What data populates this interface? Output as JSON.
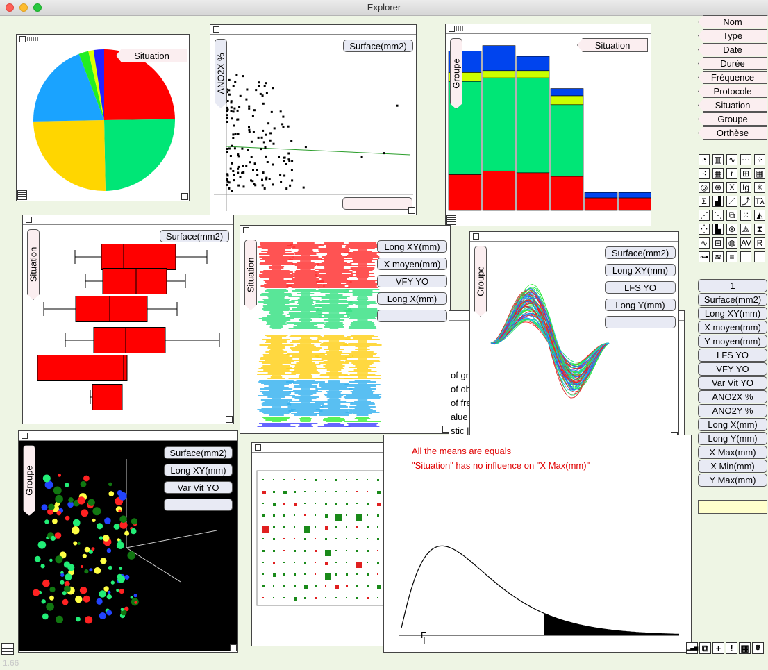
{
  "window": {
    "title": "Explorer"
  },
  "version": "1.66",
  "pie": {
    "tag": "Situation",
    "slices": [
      {
        "value": 24.8,
        "color": "#ff0000"
      },
      {
        "value": 24.9,
        "color": "#00e676"
      },
      {
        "value": 25.0,
        "color": "#ffd600"
      },
      {
        "value": 19.5,
        "color": "#1aa3ff"
      },
      {
        "value": 2.2,
        "color": "#22ee22"
      },
      {
        "value": 1.2,
        "color": "#ddff00"
      },
      {
        "value": 2.4,
        "color": "#2222ff"
      }
    ]
  },
  "scatter": {
    "y_label": "ANO2X %",
    "x_label": "Surface(mm2)",
    "x_empty": ""
  },
  "stackbar": {
    "tag": "Situation",
    "group_label": "Groupe",
    "segment_colors": [
      "#ff0000",
      "#00e676",
      "#ccff00",
      "#0044ee"
    ],
    "bars": [
      [
        0.2,
        0.52,
        0.05,
        0.12
      ],
      [
        0.22,
        0.52,
        0.04,
        0.14
      ],
      [
        0.21,
        0.53,
        0.04,
        0.08
      ],
      [
        0.19,
        0.4,
        0.05,
        0.04
      ],
      [
        0.07,
        0.0,
        0.0,
        0.03
      ],
      [
        0.07,
        0.0,
        0.0,
        0.03
      ]
    ]
  },
  "boxplot": {
    "y_label": "Situation",
    "x_label": "Surface(mm2)"
  },
  "parallel": {
    "y_label": "Situation",
    "vars": [
      "Long XY(mm)",
      "X moyen(mm)",
      "VFY YO",
      "Long X(mm)",
      ""
    ]
  },
  "curves": {
    "y_label": "Groupe",
    "vars": [
      "Surface(mm2)",
      "Long XY(mm)",
      "LFS YO",
      "Long Y(mm)",
      ""
    ]
  },
  "scatter3d": {
    "y_label": "Groupe",
    "vars": [
      "Surface(mm2)",
      "Long XY(mm)",
      "Var Vit YO",
      ""
    ]
  },
  "anova": {
    "partial_lines": [
      "of gro",
      "of obs",
      "of fre",
      "alue",
      "stic |"
    ],
    "line1": "All the means are equals",
    "line2": "\"Situation\" has no influence on \"X Max(mm)\"",
    "f_label": "F"
  },
  "right_tags": [
    "Nom",
    "Type",
    "Date",
    "Durée",
    "Fréquence",
    "Protocole",
    "Situation",
    "Groupe",
    "Orthèse"
  ],
  "right_vars": [
    "1",
    "Surface(mm2)",
    "Long XY(mm)",
    "X moyen(mm)",
    "Y moyen(mm)",
    "LFS YO",
    "VFY YO",
    "Var Vit YO",
    "ANO2X %",
    "ANO2Y %",
    "Long X(mm)",
    "Long Y(mm)",
    "X Max(mm)",
    "X Min(mm)",
    "Y Max(mm)"
  ],
  "right_input": "",
  "palette": [
    [
      "pie-chart-icon",
      "◔"
    ],
    [
      "bar-chart-icon",
      "▥"
    ],
    [
      "line-chart-icon",
      "∿"
    ],
    [
      "table-icon",
      "⋯"
    ],
    [
      "dots-icon",
      "⁘"
    ],
    [
      "scatter-icon",
      "⁖"
    ],
    [
      "grid-icon",
      "▦"
    ],
    [
      "r-icon",
      "r"
    ],
    [
      "cross-table-icon",
      "⊞"
    ],
    [
      "matrix-icon",
      "▦"
    ],
    [
      "circles-icon",
      "◎"
    ],
    [
      "pies-icon",
      "⊕"
    ],
    [
      "x-icon",
      "X"
    ],
    [
      "ig-icon",
      "Ig"
    ],
    [
      "star-icon",
      "✳"
    ],
    [
      "sigma-icon",
      "Σ"
    ],
    [
      "histogram-icon",
      "▟"
    ],
    [
      "trend-icon",
      "⟋"
    ],
    [
      "curve-icon",
      "⤴"
    ],
    [
      "lambda-icon",
      "Tλ"
    ],
    [
      "scatter2-icon",
      "⋰"
    ],
    [
      "scatter3-icon",
      "⋱"
    ],
    [
      "boxes-icon",
      "⧉"
    ],
    [
      "dots2-icon",
      "⁙"
    ],
    [
      "triangle-icon",
      "◭"
    ],
    [
      "dots3-icon",
      "⁛"
    ],
    [
      "bars-icon",
      "▙"
    ],
    [
      "radar-icon",
      "⊛"
    ],
    [
      "tri-icon",
      "⟁"
    ],
    [
      "hourglass-icon",
      "⧗"
    ],
    [
      "wave-icon",
      "∿"
    ],
    [
      "boxes2-icon",
      "⊟"
    ],
    [
      "target-icon",
      "◍"
    ],
    [
      "av-icon",
      "AV"
    ],
    [
      "r2-icon",
      "R"
    ],
    [
      "tree-icon",
      "⊶"
    ],
    [
      "zigzag-icon",
      "≋"
    ],
    [
      "list-icon",
      "≡"
    ],
    [
      "",
      ""
    ],
    [
      "",
      ""
    ]
  ],
  "bottom_icons": [
    [
      "signal-icon",
      "▁▃▅"
    ],
    [
      "copy-icon",
      "⧉"
    ],
    [
      "plus-icon",
      "+"
    ],
    [
      "exclaim-icon",
      "!"
    ],
    [
      "table-icon",
      "▦"
    ],
    [
      "trash-icon",
      "🗑"
    ]
  ]
}
